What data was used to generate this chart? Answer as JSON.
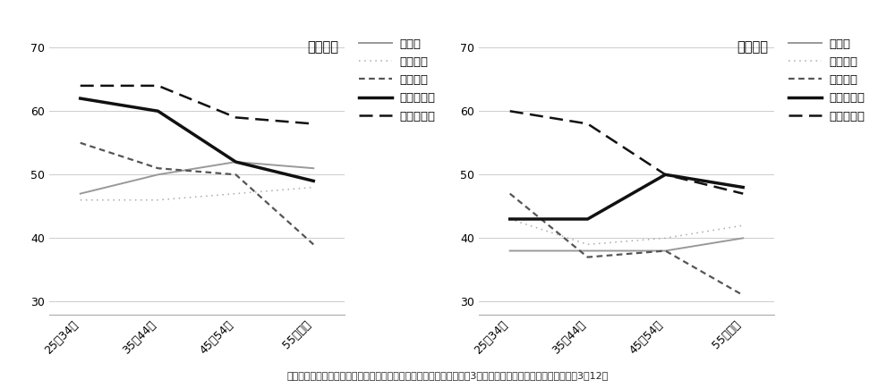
{
  "categories": [
    "25〜34歳",
    "35〜44歳",
    "45〜54歳",
    "55歳以上"
  ],
  "male": {
    "title": "男性医師",
    "doitsu": [
      47,
      50,
      52,
      51
    ],
    "furansu": [
      46,
      46,
      47,
      48
    ],
    "igirisu": [
      55,
      51,
      50,
      39
    ],
    "japan_ko_ari": [
      62,
      60,
      52,
      49
    ],
    "japan_ko_nashi": [
      64,
      64,
      59,
      58
    ]
  },
  "female": {
    "title": "女性医師",
    "doitsu": [
      38,
      38,
      38,
      40
    ],
    "furansu": [
      43,
      39,
      40,
      42
    ],
    "igirisu": [
      47,
      37,
      38,
      31
    ],
    "japan_ko_ari": [
      43,
      43,
      50,
      48
    ],
    "japan_ko_nashi": [
      60,
      58,
      50,
      47
    ]
  },
  "legend_labels": [
    "ドイツ",
    "フランス",
    "イギリス",
    "日本子あり",
    "日本子なし"
  ],
  "ylim": [
    28,
    72
  ],
  "yticks": [
    30,
    40,
    50,
    60,
    70
  ],
  "caption": "出典：「医師の働き方改革：日本医学会連合からの報告と提言」令和3年度女性医師支援担当者連絡会　令和3年12月",
  "doitsu_color": "#999999",
  "furansu_color": "#aaaaaa",
  "igirisu_color": "#555555",
  "japan_color": "#111111",
  "grid_color": "#cccccc",
  "spine_color": "#aaaaaa",
  "caption_color": "#222222",
  "bg_color": "#ffffff"
}
